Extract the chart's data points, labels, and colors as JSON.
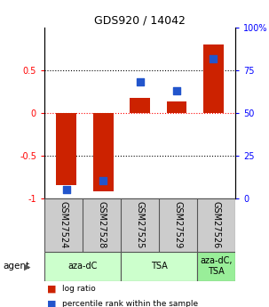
{
  "title": "GDS920 / 14042",
  "samples": [
    "GSM27524",
    "GSM27528",
    "GSM27525",
    "GSM27529",
    "GSM27526"
  ],
  "log_ratios": [
    -0.85,
    -0.92,
    0.18,
    0.13,
    0.8
  ],
  "percentiles": [
    5,
    10,
    68,
    63,
    82
  ],
  "bar_color": "#cc2200",
  "dot_color": "#2255cc",
  "ylim_left": [
    -1,
    1
  ],
  "ylim_right": [
    0,
    100
  ],
  "yticks_left": [
    -1,
    -0.5,
    0,
    0.5
  ],
  "yticks_right": [
    0,
    25,
    50,
    75,
    100
  ],
  "ytick_labels_left": [
    "-1",
    "-0.5",
    "0",
    "0.5"
  ],
  "ytick_labels_right": [
    "0",
    "25",
    "50",
    "75",
    "100%"
  ],
  "hlines": [
    -0.5,
    0,
    0.5
  ],
  "agent_labels": [
    "aza-dC",
    "TSA",
    "aza-dC,\nTSA"
  ],
  "agent_groups": [
    [
      0,
      1
    ],
    [
      2,
      3
    ],
    [
      4
    ]
  ],
  "agent_colors_light": [
    "#ccffcc",
    "#ccffcc",
    "#99ee99"
  ],
  "sample_box_color": "#cccccc",
  "legend_red": "log ratio",
  "legend_blue": "percentile rank within the sample",
  "bar_width": 0.55,
  "dot_size": 28,
  "xlim": [
    -0.6,
    4.6
  ]
}
